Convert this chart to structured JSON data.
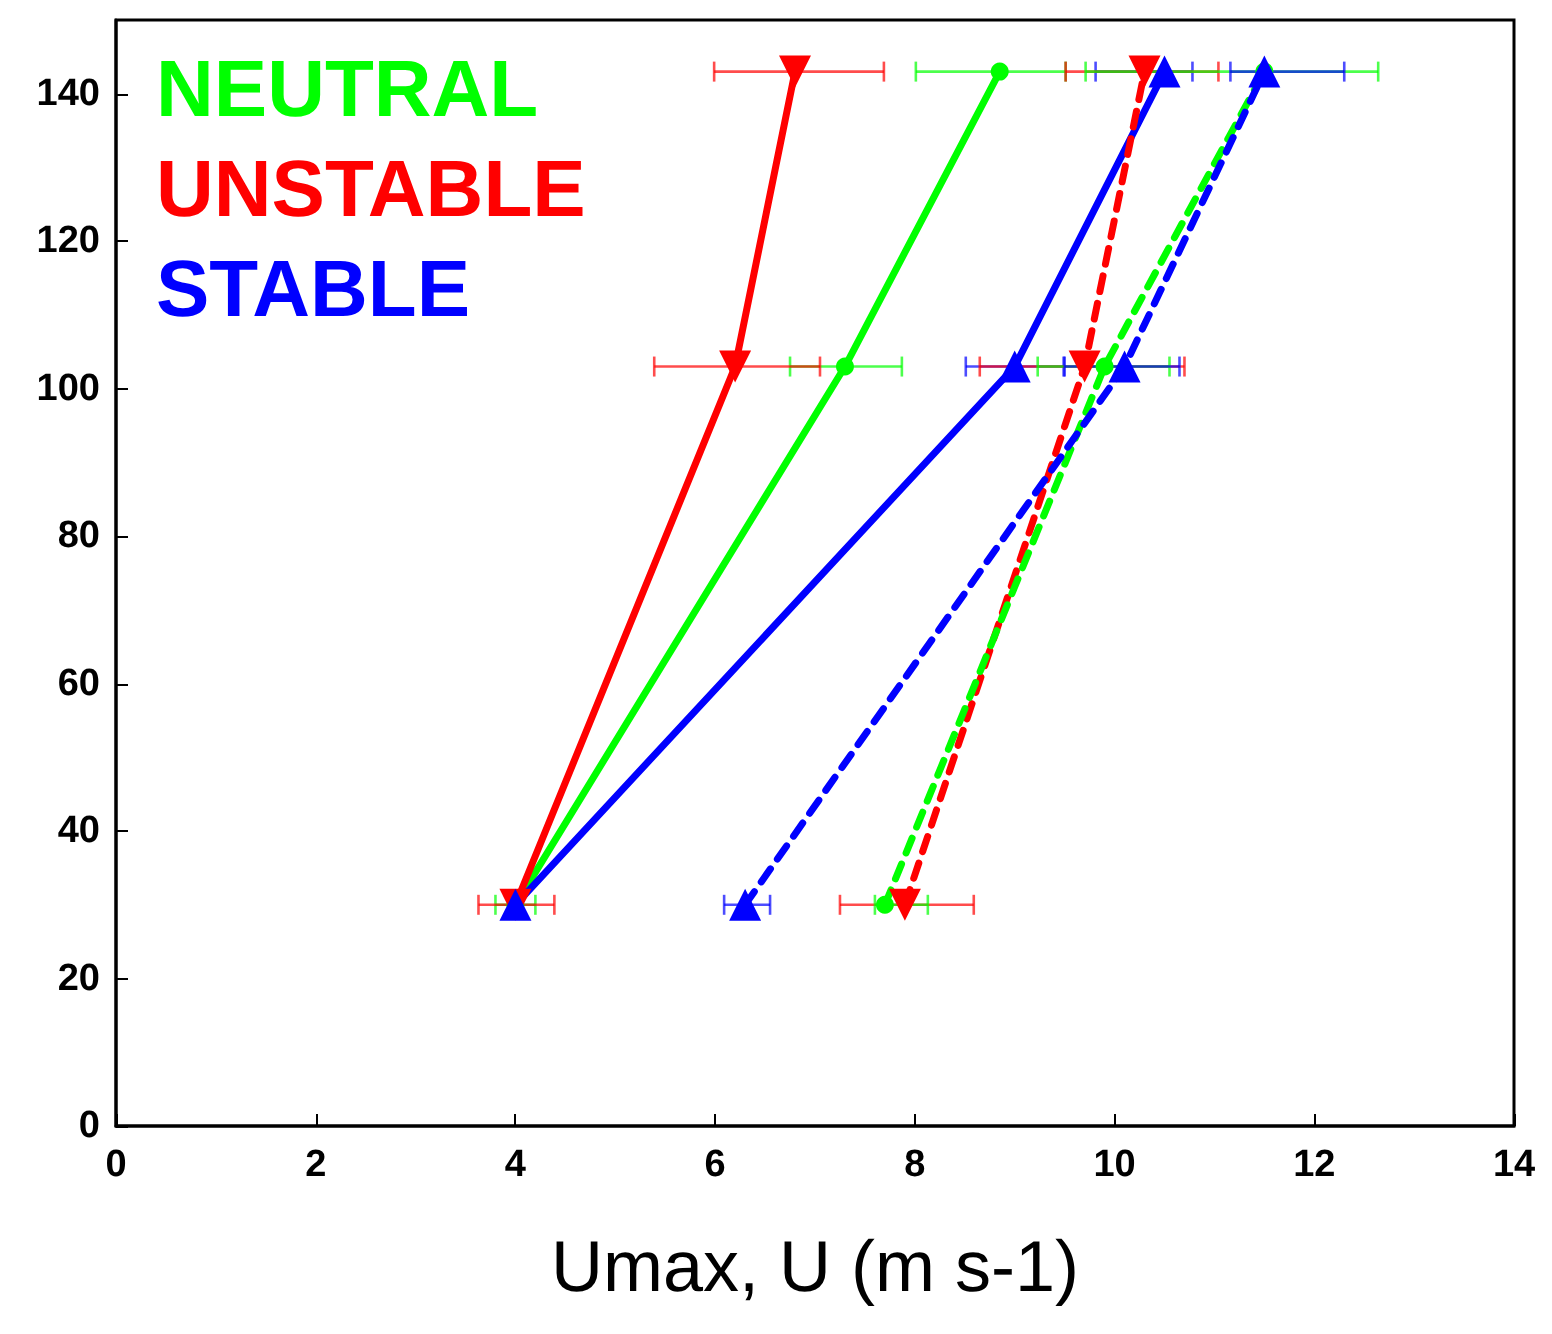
{
  "chart_data": {
    "type": "line",
    "xlabel": "Umax, U (m s-1)",
    "xlim": [
      0,
      14
    ],
    "xticks": [
      0,
      2,
      4,
      6,
      8,
      10,
      12,
      14
    ],
    "ylim": [
      0,
      150
    ],
    "yticks": [
      0,
      20,
      40,
      60,
      80,
      100,
      120,
      140
    ],
    "grid": false,
    "legend": "top left",
    "series": [
      {
        "name": "NEUTRAL",
        "color": "#00ff00",
        "marker": "circle",
        "line_style": "solid",
        "x": [
          4,
          7.3,
          8.85
        ],
        "values": [
          30,
          103,
          143
        ],
        "xerrors": [
          [
            3.8,
            4.2
          ],
          [
            6.75,
            7.87
          ],
          [
            8.01,
            9.51
          ]
        ]
      },
      {
        "name": "UNSTABLE",
        "color": "#ff0000",
        "marker": "triangle-down",
        "line_style": "solid",
        "x": [
          4,
          6.2,
          6.8
        ],
        "values": [
          30,
          103,
          143
        ],
        "xerrors": [
          [
            3.63,
            4.39
          ],
          [
            5.39,
            7.05
          ],
          [
            5.99,
            7.69
          ]
        ]
      },
      {
        "name": "STABLE",
        "color": "#0000ff",
        "marker": "triangle",
        "line_style": "solid",
        "x": [
          4,
          9.0,
          10.5
        ],
        "values": [
          30,
          103,
          143
        ],
        "xerrors": [
          null,
          [
            8.51,
            9.49
          ],
          [
            9.81,
            10.78
          ]
        ]
      },
      {
        "color": "#ff0000",
        "marker": "triangle-down",
        "line_style": "dashed",
        "x": [
          7.9,
          9.7,
          10.3
        ],
        "values": [
          30,
          103,
          143
        ],
        "xerrors": [
          [
            7.25,
            8.59
          ],
          [
            8.65,
            10.7
          ],
          [
            9.51,
            11.04
          ]
        ]
      },
      {
        "color": "#00ff00",
        "marker": "circle",
        "line_style": "dashed",
        "x": [
          7.7,
          9.9,
          11.5
        ],
        "values": [
          30,
          103,
          143
        ],
        "xerrors": [
          [
            7.6,
            8.13
          ],
          [
            9.23,
            10.55
          ],
          [
            9.71,
            12.64
          ]
        ]
      },
      {
        "color": "#0000ff",
        "marker": "triangle",
        "line_style": "dashed",
        "x": [
          6.3,
          10.1,
          11.5
        ],
        "values": [
          30,
          103,
          143
        ],
        "xerrors": [
          [
            6.09,
            6.55
          ],
          [
            9.5,
            10.65
          ],
          [
            11.16,
            12.3
          ]
        ]
      }
    ]
  }
}
